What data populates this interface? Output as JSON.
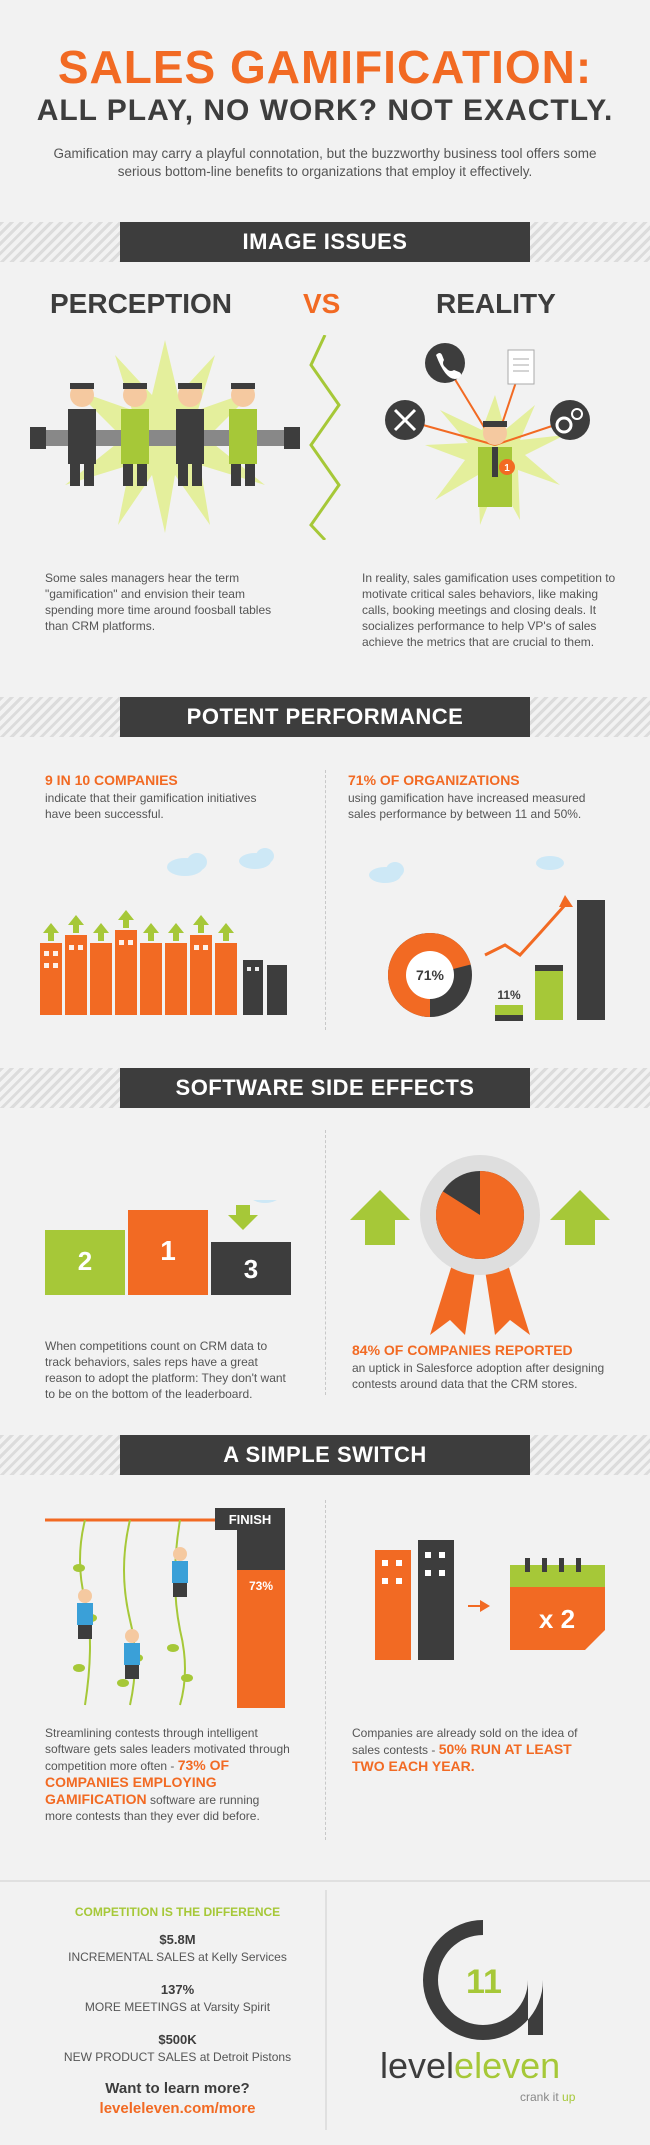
{
  "header": {
    "title": "SALES GAMIFICATION:",
    "subtitle": "ALL PLAY, NO WORK? NOT EXACTLY.",
    "intro": "Gamification may carry a playful connotation, but the buzzworthy business tool offers some serious bottom-line benefits to organizations that employ it effectively."
  },
  "image_issues": {
    "banner": "IMAGE ISSUES",
    "perception": "PERCEPTION",
    "vs": "VS",
    "reality": "REALITY",
    "perception_text": "Some sales managers hear the term \"gamification\" and envision their team spending more time around foosball tables than CRM platforms.",
    "reality_text": "In reality, sales gamification uses competition to motivate critical sales behaviors, like making calls, booking meetings and closing deals. It socializes performance to help VP's of sales achieve the metrics that are crucial to them.",
    "badge": "1"
  },
  "potent": {
    "banner": "POTENT PERFORMANCE",
    "left_head": "9 IN 10 COMPANIES",
    "left_text": "indicate that their gamification initiatives have been successful.",
    "right_head": "71% OF ORGANIZATIONS",
    "right_text": "using gamification have increased measured sales performance by between 11 and 50%.",
    "pie_label": "71%",
    "bar_label": "11%",
    "pie_value": 71
  },
  "software": {
    "banner": "SOFTWARE SIDE EFFECTS",
    "podium": [
      "2",
      "1",
      "3"
    ],
    "left_text": "When competitions count on CRM data to track behaviors, sales reps have a great reason to adopt the platform: They don't want to be on the bottom of the leaderboard.",
    "right_head": "84% OF COMPANIES REPORTED",
    "right_text": "an uptick in Salesforce adoption after designing contests around data that the CRM stores.",
    "medal_value": 84
  },
  "switch": {
    "banner": "A SIMPLE SWITCH",
    "finish": "FINISH",
    "pole_label": "73%",
    "calendar_label": "x 2",
    "left_text_1": "Streamlining contests through intelligent software gets sales leaders motivated through competition more often - ",
    "left_highlight": "73% OF COMPANIES EMPLOYING GAMIFICATION",
    "left_text_2": " software are running more contests than they ever did before.",
    "right_text": "Companies are already sold on the idea of sales contests - ",
    "right_highlight": "50% RUN AT LEAST TWO EACH YEAR."
  },
  "footer": {
    "head": "COMPETITION IS THE DIFFERENCE",
    "stats": [
      {
        "num": "$5.8M",
        "desc": "INCREMENTAL SALES at Kelly Services"
      },
      {
        "num": "137%",
        "desc": "MORE MEETINGS at Varsity Spirit"
      },
      {
        "num": "$500K",
        "desc": "NEW PRODUCT SALES at Detroit Pistons"
      }
    ],
    "cta": "Want to learn more?",
    "url": "leveleleven.com/more",
    "logo_num": "11",
    "logo_level": "level",
    "logo_eleven": "eleven",
    "tagline_1": "crank it ",
    "tagline_2": "up"
  },
  "colors": {
    "orange": "#f26a23",
    "lime": "#a6c838",
    "dark": "#3d3d3d",
    "bg": "#f2f2f2"
  }
}
